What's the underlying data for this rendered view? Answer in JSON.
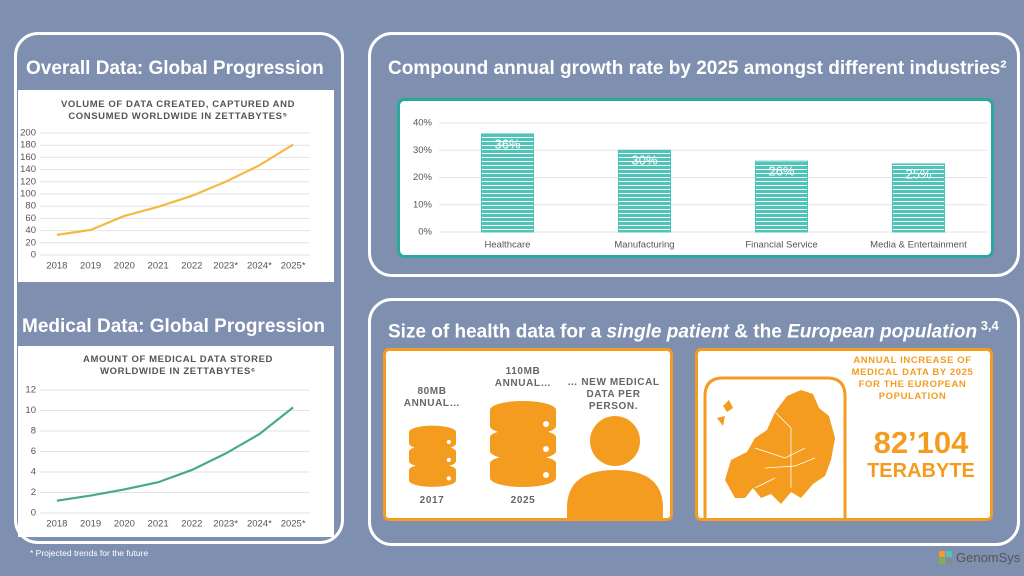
{
  "left_panel": {
    "heading_1": "Overall Data: Global Progression",
    "heading_2": "Medical Data: Global Progression",
    "footnote": "* Projected trends for the future"
  },
  "health_data": {
    "title_start": "Size of health data for a ",
    "title_italic_1": "single patient",
    "title_middle": " & the ",
    "title_italic_2": "European population",
    "title_sup": " 3,4",
    "label_2017": "80MB ANNUAL…",
    "year_2017": "2017",
    "label_2025": "110MB ANNUAL…",
    "year_2025": "2025",
    "per_person": "… NEW MEDICAL DATA PER PERSON.",
    "europe_label": "ANNUAL INCREASE OF MEDICAL DATA BY 2025 FOR THE EUROPEAN POPULATION",
    "europe_value": "82’104",
    "europe_unit": "TERABYTE"
  },
  "logo": "GenomSys",
  "chart_data": [
    {
      "type": "line",
      "title": "VOLUME OF DATA CREATED, CAPTURED AND CONSUMED WORLDWIDE IN ZETTABYTES⁵",
      "categories": [
        "2018",
        "2019",
        "2020",
        "2021",
        "2022",
        "2023*",
        "2024*",
        "2025*"
      ],
      "values": [
        33,
        41,
        64,
        79,
        97,
        120,
        147,
        181
      ],
      "color": "#f5b942",
      "ylim": [
        0,
        200
      ],
      "yticks": [
        0,
        20,
        40,
        60,
        80,
        100,
        120,
        140,
        160,
        180,
        200
      ],
      "grid": true
    },
    {
      "type": "line",
      "title": "AMOUNT OF MEDICAL DATA STORED WORLDWIDE IN ZETTABYTES⁶",
      "categories": [
        "2018",
        "2019",
        "2020",
        "2021",
        "2022",
        "2023*",
        "2024*",
        "2025*"
      ],
      "values": [
        1.2,
        1.7,
        2.3,
        3.0,
        4.2,
        5.8,
        7.7,
        10.3
      ],
      "color": "#4aa88a",
      "ylim": [
        0,
        12
      ],
      "yticks": [
        0,
        2,
        4,
        6,
        8,
        10,
        12
      ],
      "grid": true
    },
    {
      "type": "bar",
      "title": "Compound annual growth rate by 2025 amongst different industries²",
      "categories": [
        "Healthcare",
        "Manufacturing",
        "Financial Service",
        "Media & Entertainment"
      ],
      "values": [
        36,
        30,
        26,
        25
      ],
      "value_labels": [
        "36%",
        "30%",
        "26%",
        "25%"
      ],
      "color": "#4fc4b9",
      "ylim": [
        0,
        40
      ],
      "yticks": [
        {
          "value": 0,
          "label": "0%"
        },
        {
          "value": 10,
          "label": "10%"
        },
        {
          "value": 20,
          "label": "20%"
        },
        {
          "value": 30,
          "label": "30%"
        },
        {
          "value": 40,
          "label": "40%"
        }
      ],
      "grid": true
    }
  ]
}
